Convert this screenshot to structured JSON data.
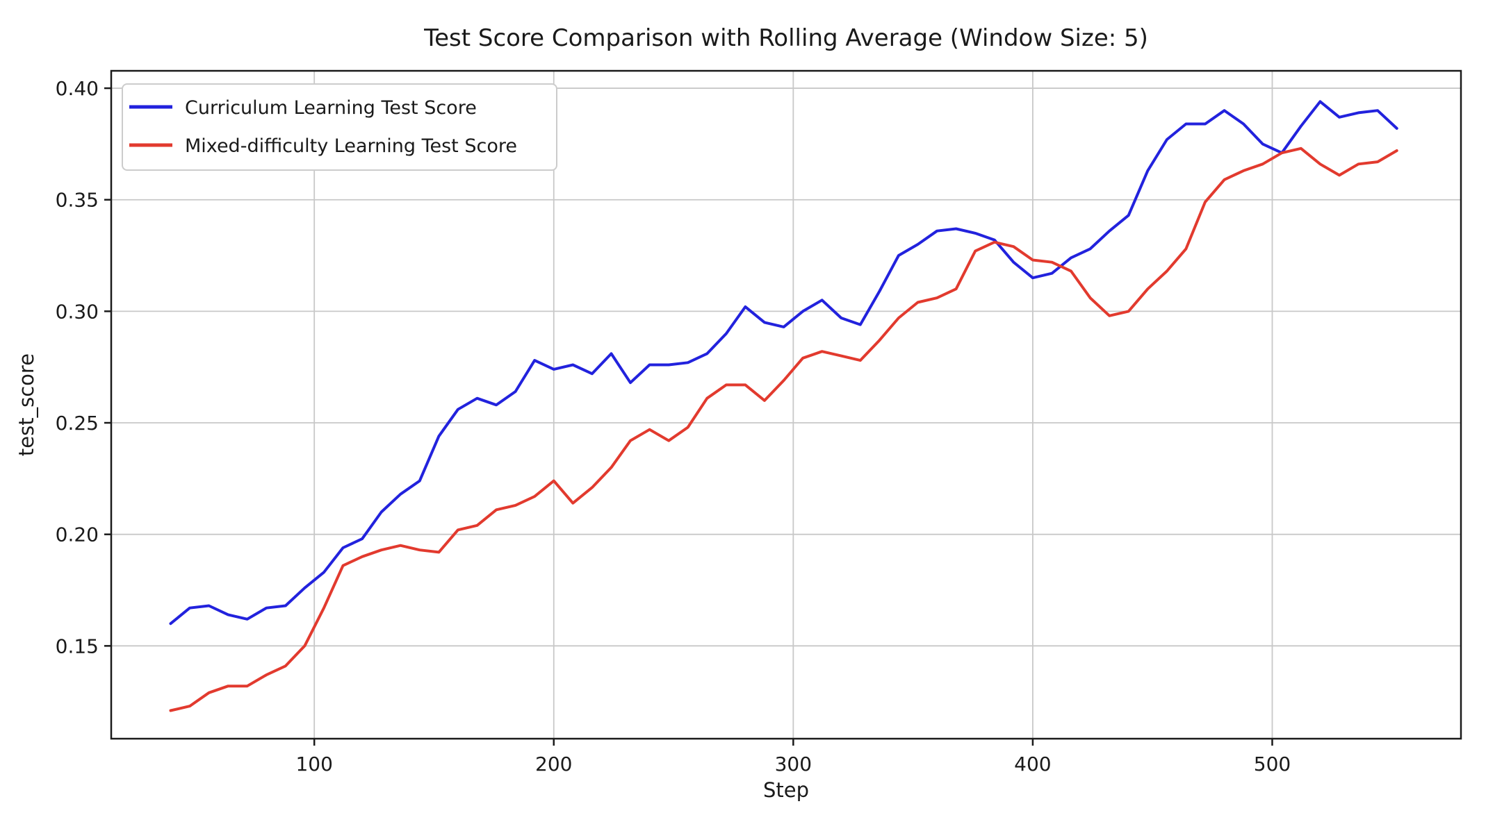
{
  "chart_data": {
    "type": "line",
    "title": "Test Score Comparison with Rolling Average (Window Size: 5)",
    "xlabel": "Step",
    "ylabel": "test_score",
    "grid": true,
    "grid_color": "#c8c8c8",
    "background_color": "#ffffff",
    "spine_color": "#1a1a1a",
    "legend_position": "upper-left",
    "xlim": [
      15.2,
      578.8
    ],
    "ylim": [
      0.1084,
      0.4078
    ],
    "xticks": [
      100,
      200,
      300,
      400,
      500
    ],
    "yticks": [
      0.15,
      0.2,
      0.25,
      0.3,
      0.35,
      0.4
    ],
    "rolling_window": 5,
    "x": [
      40,
      48,
      56,
      64,
      72,
      80,
      88,
      96,
      104,
      112,
      120,
      128,
      136,
      144,
      152,
      160,
      168,
      176,
      184,
      192,
      200,
      208,
      216,
      224,
      232,
      240,
      248,
      256,
      264,
      272,
      280,
      288,
      296,
      304,
      312,
      320,
      328,
      336,
      344,
      352,
      360,
      368,
      376,
      384,
      392,
      400,
      408,
      416,
      424,
      432,
      440,
      448,
      456,
      464,
      472,
      480,
      488,
      496,
      504,
      512,
      520,
      528,
      536,
      544,
      552
    ],
    "series": [
      {
        "name": "Curriculum Learning Test Score",
        "color": "#2222dd",
        "values": [
          0.16,
          0.167,
          0.168,
          0.164,
          0.162,
          0.167,
          0.168,
          0.176,
          0.183,
          0.194,
          0.198,
          0.21,
          0.218,
          0.224,
          0.244,
          0.256,
          0.261,
          0.258,
          0.264,
          0.278,
          0.274,
          0.276,
          0.272,
          0.281,
          0.268,
          0.276,
          0.276,
          0.277,
          0.281,
          0.29,
          0.302,
          0.295,
          0.293,
          0.3,
          0.305,
          0.297,
          0.294,
          0.309,
          0.325,
          0.33,
          0.336,
          0.337,
          0.335,
          0.332,
          0.322,
          0.315,
          0.317,
          0.324,
          0.328,
          0.336,
          0.343,
          0.363,
          0.377,
          0.384,
          0.384,
          0.39,
          0.384,
          0.375,
          0.371,
          0.383,
          0.394,
          0.387,
          0.389,
          0.39,
          0.382
        ]
      },
      {
        "name": "Mixed-difficulty Learning Test Score",
        "color": "#e23a2e",
        "values": [
          0.121,
          0.123,
          0.129,
          0.132,
          0.132,
          0.137,
          0.141,
          0.15,
          0.167,
          0.186,
          0.19,
          0.193,
          0.195,
          0.193,
          0.192,
          0.202,
          0.204,
          0.211,
          0.213,
          0.217,
          0.224,
          0.214,
          0.221,
          0.23,
          0.242,
          0.247,
          0.242,
          0.248,
          0.261,
          0.267,
          0.267,
          0.26,
          0.269,
          0.279,
          0.282,
          0.28,
          0.278,
          0.287,
          0.297,
          0.304,
          0.306,
          0.31,
          0.327,
          0.331,
          0.329,
          0.323,
          0.322,
          0.318,
          0.306,
          0.298,
          0.3,
          0.31,
          0.318,
          0.328,
          0.349,
          0.359,
          0.363,
          0.366,
          0.371,
          0.373,
          0.366,
          0.361,
          0.366,
          0.367,
          0.372
        ]
      }
    ]
  }
}
